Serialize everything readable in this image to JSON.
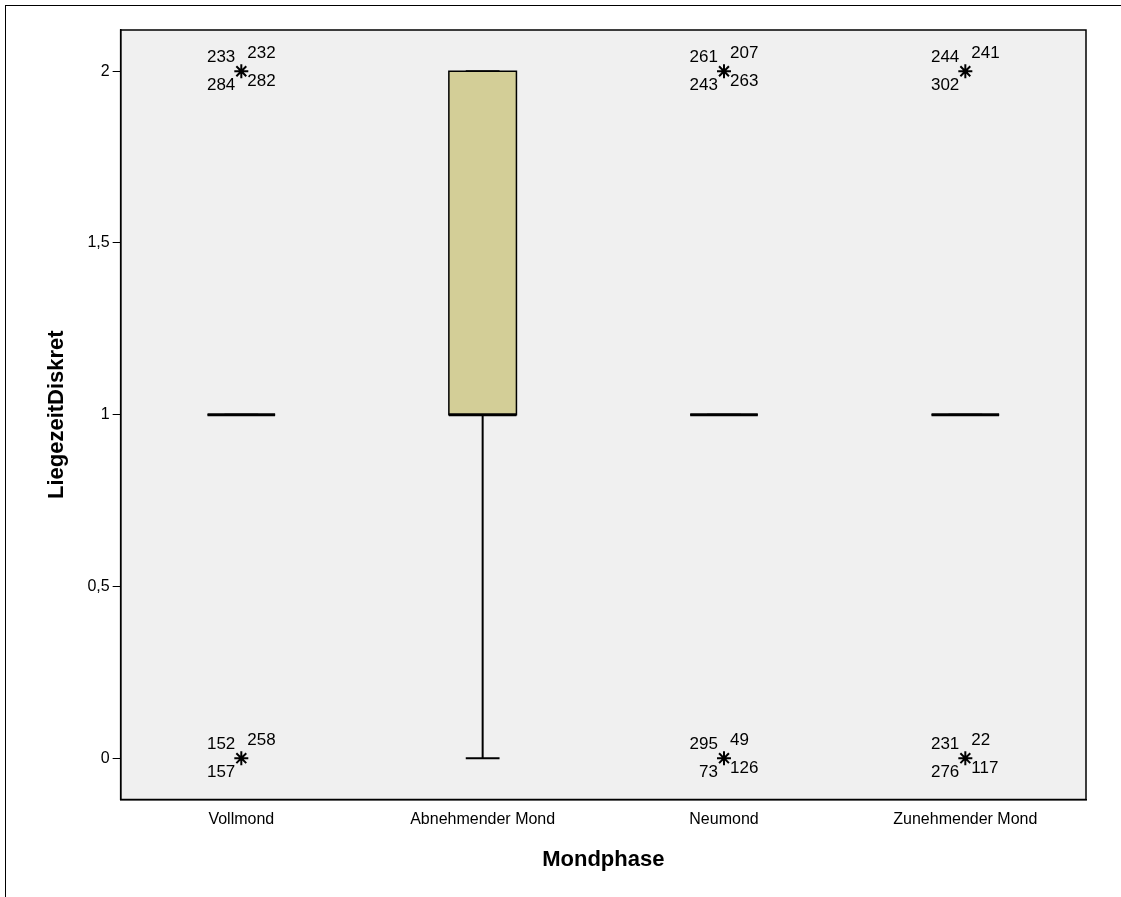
{
  "chart_data": {
    "type": "box",
    "xlabel": "Mondphase",
    "ylabel": "LiegezeitDiskret",
    "categories": [
      "Vollmond",
      "Abnehmender Mond",
      "Neumond",
      "Zunehmender Mond"
    ],
    "boxes": [
      {
        "low": 1,
        "q1": 1,
        "median": 1,
        "q3": 1,
        "high": 1
      },
      {
        "low": 0,
        "q1": 1,
        "median": 1,
        "q3": 2,
        "high": 2
      },
      {
        "low": 1,
        "q1": 1,
        "median": 1,
        "q3": 1,
        "high": 1
      },
      {
        "low": 1,
        "q1": 1,
        "median": 1,
        "q3": 1,
        "high": 1
      }
    ],
    "colors": [
      "#000000",
      "#d3ce97",
      "#000000",
      "#000000"
    ],
    "series": [
      {
        "type": "scatter",
        "color": "#000000",
        "x": [
          "Vollmond",
          "Vollmond",
          "Neumond",
          "Neumond",
          "Zunehmender Mond",
          "Zunehmender Mond"
        ],
        "values": [
          2,
          0,
          2,
          0,
          2,
          0
        ]
      }
    ],
    "marker": "cross",
    "grid": false,
    "legend": false,
    "ylim": [
      -0.12,
      2.12
    ],
    "yticks": [
      0,
      {
        "value": 0.5,
        "label": "0,5"
      },
      1,
      {
        "value": 1.5,
        "label": "1,5"
      },
      2
    ],
    "annotations": [
      {
        "text": "233",
        "x": "Vollmond",
        "y": 2
      },
      {
        "text": "232",
        "x": "Vollmond",
        "y": 2
      },
      {
        "text": "284",
        "x": "Vollmond",
        "y": 2
      },
      {
        "text": "282",
        "x": "Vollmond",
        "y": 2
      },
      {
        "text": "152",
        "x": "Vollmond",
        "y": 0
      },
      {
        "text": "258",
        "x": "Vollmond",
        "y": 0
      },
      {
        "text": "157",
        "x": "Vollmond",
        "y": 0
      },
      {
        "text": "261",
        "x": "Neumond",
        "y": 2
      },
      {
        "text": "207",
        "x": "Neumond",
        "y": 2
      },
      {
        "text": "243",
        "x": "Neumond",
        "y": 2
      },
      {
        "text": "263",
        "x": "Neumond",
        "y": 2
      },
      {
        "text": "295",
        "x": "Neumond",
        "y": 0
      },
      {
        "text": "49",
        "x": "Neumond",
        "y": 0
      },
      {
        "text": "73",
        "x": "Neumond",
        "y": 0
      },
      {
        "text": "126",
        "x": "Neumond",
        "y": 0
      },
      {
        "text": "244",
        "x": "Zunehmender Mond",
        "y": 2
      },
      {
        "text": "241",
        "x": "Zunehmender Mond",
        "y": 2
      },
      {
        "text": "302",
        "x": "Zunehmender Mond",
        "y": 2
      },
      {
        "text": "231",
        "x": "Zunehmender Mond",
        "y": 0
      },
      {
        "text": "22",
        "x": "Zunehmender Mond",
        "y": 0
      },
      {
        "text": "276",
        "x": "Zunehmender Mond",
        "y": 0
      },
      {
        "text": "117",
        "x": "Zunehmender Mond",
        "y": 0
      }
    ]
  }
}
